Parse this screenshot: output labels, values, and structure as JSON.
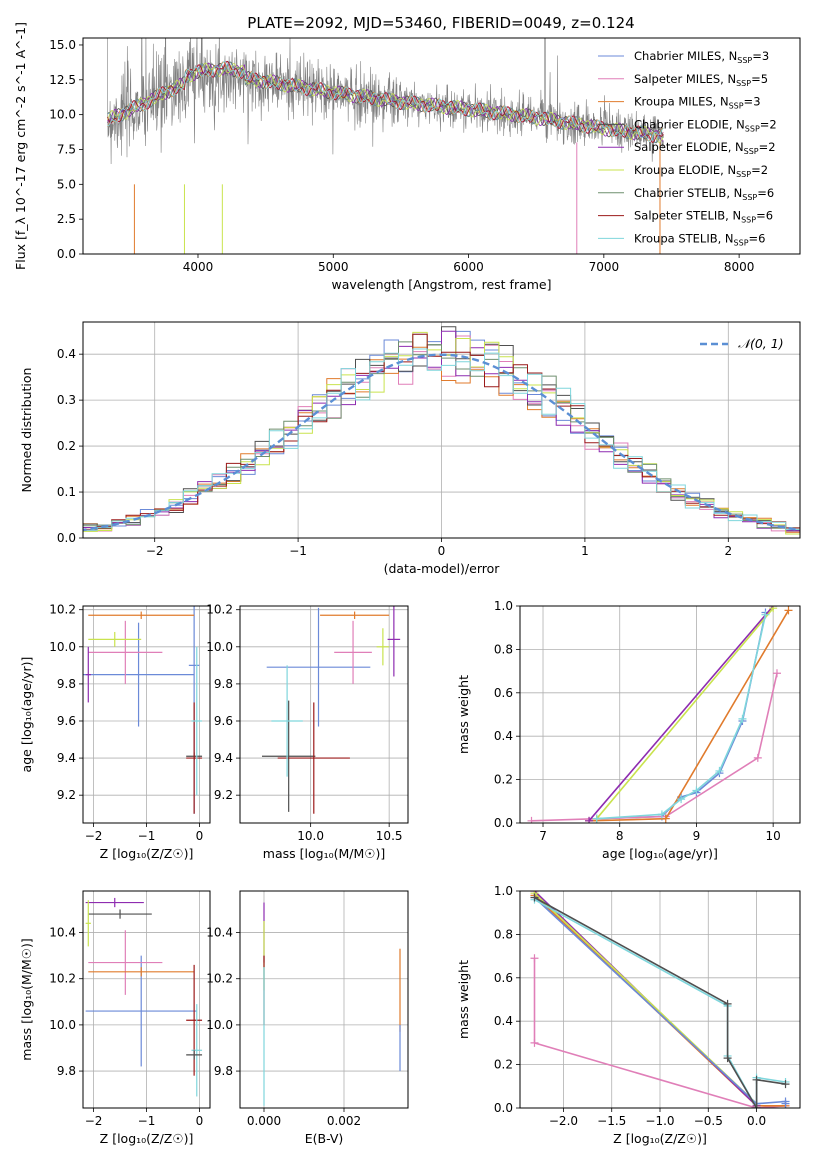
{
  "figure": {
    "title": "PLATE=2092, MJD=53460, FIBERID=0049, z=0.124"
  },
  "models": [
    {
      "name": "Chabrier MILES",
      "nssp": "3",
      "color": "#6b8ad8"
    },
    {
      "name": "Salpeter MILES",
      "nssp": "5",
      "color": "#e07fb8"
    },
    {
      "name": "Kroupa MILES",
      "nssp": "3",
      "color": "#e07b2d"
    },
    {
      "name": "Chabrier ELODIE",
      "nssp": "2",
      "color": "#4f4f4f"
    },
    {
      "name": "Salpeter ELODIE",
      "nssp": "2",
      "color": "#8e2cb0"
    },
    {
      "name": "Kroupa ELODIE",
      "nssp": "2",
      "color": "#c9e34e"
    },
    {
      "name": "Chabrier STELIB",
      "nssp": "6",
      "color": "#6f8f6f"
    },
    {
      "name": "Salpeter STELIB",
      "nssp": "6",
      "color": "#9b1a1a"
    },
    {
      "name": "Kroupa STELIB",
      "nssp": "6",
      "color": "#7fd6dc"
    }
  ],
  "observed_color": "#808080",
  "normal_color": "#5b8fd4",
  "chart_data": [
    {
      "id": "spectrum",
      "type": "line",
      "xlabel": "wavelength [Angstrom, rest frame]",
      "ylabel": "Flux [f_λ 10^-17 erg cm^-2 s^-1 A^-1]",
      "xlim": [
        3150,
        8450
      ],
      "ylim": [
        0,
        15.5
      ],
      "xticks": [
        "4000",
        "5000",
        "6000",
        "7000",
        "8000"
      ],
      "yticks": [
        "0.0",
        "2.5",
        "5.0",
        "7.5",
        "10.0",
        "12.5",
        "15.0"
      ],
      "grid": false,
      "legend": "top-right",
      "observed_range": [
        3330,
        7440
      ],
      "continuum": [
        [
          3330,
          9.6
        ],
        [
          3600,
          10.8
        ],
        [
          3800,
          11.8
        ],
        [
          4000,
          12.6
        ],
        [
          4200,
          12.8
        ],
        [
          4500,
          12.4
        ],
        [
          5000,
          11.6
        ],
        [
          5500,
          10.9
        ],
        [
          6000,
          10.4
        ],
        [
          6500,
          9.8
        ],
        [
          7000,
          9.0
        ],
        [
          7400,
          8.5
        ]
      ]
    },
    {
      "id": "residuals",
      "type": "step",
      "xlabel": "(data-model)/error",
      "ylabel": "Normed distribution",
      "xlim": [
        -2.5,
        2.5
      ],
      "ylim": [
        0,
        0.47
      ],
      "xticks": [
        "−2",
        "−1",
        "0",
        "1",
        "2"
      ],
      "yticks": [
        "0.0",
        "0.1",
        "0.2",
        "0.3",
        "0.4"
      ],
      "grid": true,
      "legend": "top-right",
      "normal_label": "𝒩(0, 1)",
      "bin_width": 0.1
    },
    {
      "id": "age-vs-Z",
      "type": "errorbar",
      "xlabel": "Z [log₁₀(Z/Z☉)]",
      "ylabel": "age  [log₁₀(age/yr)]",
      "xlim": [
        -2.2,
        0.2
      ],
      "ylim": [
        9.05,
        10.22
      ],
      "xticks": [
        "−2",
        "−1",
        "0"
      ],
      "yticks": [
        "9.2",
        "9.4",
        "9.6",
        "9.8",
        "10.0",
        "10.2"
      ],
      "grid": true,
      "points": [
        {
          "model": 0,
          "x": -1.15,
          "xerr": 1.05,
          "y": 9.85,
          "yerr": 0.28
        },
        {
          "model": 0,
          "x": -0.1,
          "xerr": 0.1,
          "y": 9.9,
          "yerr": 0.8
        },
        {
          "model": 1,
          "x": -1.4,
          "xerr": 0.7,
          "y": 9.97,
          "yerr": 0.17
        },
        {
          "model": 2,
          "x": -1.1,
          "xerr": 1.0,
          "y": 10.17,
          "yerr": 0.02
        },
        {
          "model": 4,
          "x": -2.1,
          "xerr": 0.05,
          "y": 9.85,
          "yerr": 0.15
        },
        {
          "model": 5,
          "x": -1.6,
          "xerr": 0.5,
          "y": 10.04,
          "yerr": 0.04
        },
        {
          "model": 3,
          "x": -0.1,
          "xerr": 0.15,
          "y": 9.41,
          "yerr": 0.02
        },
        {
          "model": 7,
          "x": -0.1,
          "xerr": 0.15,
          "y": 9.4,
          "yerr": 0.3
        },
        {
          "model": 8,
          "x": -0.05,
          "xerr": 0.1,
          "y": 9.6,
          "yerr": 0.4
        }
      ]
    },
    {
      "id": "age-vs-mass",
      "type": "errorbar",
      "xlabel": "mass [log₁₀(M/M☉)]",
      "ylabel": "",
      "xlim": [
        9.55,
        10.62
      ],
      "ylim": [
        9.05,
        10.22
      ],
      "xticks": [
        "9.5",
        "10.0",
        "10.5"
      ],
      "yticks": [
        "9.2",
        "9.4",
        "9.6",
        "9.8",
        "10.0",
        "10.2"
      ],
      "grid": true,
      "points": [
        {
          "model": 0,
          "x": 10.05,
          "xerr": 0.33,
          "y": 9.89,
          "yerr": 0.32
        },
        {
          "model": 1,
          "x": 10.27,
          "xerr": 0.12,
          "y": 9.97,
          "yerr": 0.17
        },
        {
          "model": 2,
          "x": 10.28,
          "xerr": 0.22,
          "y": 10.17,
          "yerr": 0.02
        },
        {
          "model": 4,
          "x": 10.53,
          "xerr": 0.04,
          "y": 10.04,
          "yerr": 0.2
        },
        {
          "model": 5,
          "x": 10.46,
          "xerr": 0.04,
          "y": 10.0,
          "yerr": 0.1
        },
        {
          "model": 3,
          "x": 9.86,
          "xerr": 0.17,
          "y": 9.41,
          "yerr": 0.3
        },
        {
          "model": 7,
          "x": 10.02,
          "xerr": 0.23,
          "y": 9.4,
          "yerr": 0.3
        },
        {
          "model": 8,
          "x": 9.85,
          "xerr": 0.1,
          "y": 9.6,
          "yerr": 0.3
        }
      ]
    },
    {
      "id": "weight-vs-age",
      "type": "line",
      "xlabel": "age  [log₁₀(age/yr)]",
      "ylabel": "mass weight",
      "xlim": [
        6.7,
        10.35
      ],
      "ylim": [
        0,
        1.0
      ],
      "xticks": [
        "7",
        "8",
        "9",
        "10"
      ],
      "yticks": [
        "0.0",
        "0.2",
        "0.4",
        "0.6",
        "0.8",
        "1.0"
      ],
      "grid": true,
      "series": [
        {
          "model": 0,
          "x": [
            7.7,
            8.55,
            8.8,
            9.0,
            9.3,
            9.6,
            9.9
          ],
          "y": [
            0.02,
            0.03,
            0.12,
            0.14,
            0.23,
            0.47,
            0.97
          ]
        },
        {
          "model": 1,
          "x": [
            6.85,
            8.6,
            9.8,
            10.05
          ],
          "y": [
            0.01,
            0.03,
            0.3,
            0.69
          ]
        },
        {
          "model": 2,
          "x": [
            7.6,
            8.6,
            10.2
          ],
          "y": [
            0.01,
            0.02,
            0.98
          ]
        },
        {
          "model": 4,
          "x": [
            7.6,
            10.0
          ],
          "y": [
            0.01,
            1.0
          ]
        },
        {
          "model": 5,
          "x": [
            7.7,
            10.0
          ],
          "y": [
            0.02,
            0.99
          ]
        },
        {
          "model": 8,
          "x": [
            7.7,
            8.55,
            8.8,
            9.0,
            9.3,
            9.6,
            9.9
          ],
          "y": [
            0.02,
            0.04,
            0.11,
            0.15,
            0.24,
            0.48,
            0.96
          ]
        }
      ]
    },
    {
      "id": "mass-vs-Z",
      "type": "errorbar",
      "xlabel": "Z [log₁₀(Z/Z☉)]",
      "ylabel": "mass [log₁₀(M/M☉)]",
      "xlim": [
        -2.2,
        0.2
      ],
      "ylim": [
        9.64,
        10.58
      ],
      "xticks": [
        "−2",
        "−1",
        "0"
      ],
      "yticks": [
        "9.8",
        "10.0",
        "10.2",
        "10.4"
      ],
      "grid": true,
      "points": [
        {
          "model": 0,
          "x": -1.1,
          "xerr": 1.05,
          "y": 10.06,
          "yerr": 0.24
        },
        {
          "model": 1,
          "x": -1.4,
          "xerr": 0.7,
          "y": 10.27,
          "yerr": 0.14
        },
        {
          "model": 2,
          "x": -1.1,
          "xerr": 1.0,
          "y": 10.23,
          "yerr": 0.02
        },
        {
          "model": 4,
          "x": -1.6,
          "xerr": 0.55,
          "y": 10.53,
          "yerr": 0.02
        },
        {
          "model": 3,
          "x": -1.5,
          "xerr": 0.6,
          "y": 10.48,
          "yerr": 0.02
        },
        {
          "model": 5,
          "x": -2.1,
          "xerr": 0.05,
          "y": 10.44,
          "yerr": 0.1
        },
        {
          "model": 7,
          "x": -0.1,
          "xerr": 0.15,
          "y": 10.02,
          "yerr": 0.24
        },
        {
          "model": 8,
          "x": -0.05,
          "xerr": 0.1,
          "y": 9.89,
          "yerr": 0.2
        },
        {
          "model": 3,
          "x": -0.1,
          "xerr": 0.15,
          "y": 9.87,
          "yerr": 0.02
        }
      ]
    },
    {
      "id": "mass-vs-ebv",
      "type": "errorbar",
      "xlabel": "E(B-V)",
      "ylabel": "",
      "xlim": [
        -0.0006,
        0.0036
      ],
      "ylim": [
        9.64,
        10.58
      ],
      "xticks": [
        "0.000",
        "0.002"
      ],
      "yticks": [
        "9.8",
        "10.0",
        "10.2",
        "10.4"
      ],
      "grid": true,
      "points": [
        {
          "model": 4,
          "x": 0.0,
          "xerr": 0,
          "y": 10.4,
          "yerr": 0.13
        },
        {
          "model": 5,
          "x": 0.0,
          "xerr": 0,
          "y": 10.3,
          "yerr": 0.15
        },
        {
          "model": 7,
          "x": 0.0,
          "xerr": 0,
          "y": 10.15,
          "yerr": 0.15
        },
        {
          "model": 8,
          "x": 0.0,
          "xerr": 0,
          "y": 9.95,
          "yerr": 0.3
        },
        {
          "model": 2,
          "x": 0.0034,
          "xerr": 0,
          "y": 10.15,
          "yerr": 0.18
        },
        {
          "model": 0,
          "x": 0.0034,
          "xerr": 0,
          "y": 9.9,
          "yerr": 0.1
        }
      ]
    },
    {
      "id": "weight-vs-Z",
      "type": "line",
      "xlabel": "Z [log₁₀(Z/Z☉)]",
      "ylabel": "mass weight",
      "xlim": [
        -2.45,
        0.45
      ],
      "ylim": [
        0,
        1.0
      ],
      "xticks": [
        "−2.0",
        "−1.5",
        "−1.0",
        "−0.5",
        "0.0",
        "0.5"
      ],
      "yticks": [
        "0.0",
        "0.2",
        "0.4",
        "0.6",
        "0.8",
        "1.0"
      ],
      "grid": true,
      "series": [
        {
          "model": 1,
          "x": [
            -2.3,
            -2.3,
            0.0,
            0.3
          ],
          "y": [
            0.69,
            0.3,
            0.0,
            0.01
          ]
        },
        {
          "model": 2,
          "x": [
            -2.3,
            0.0,
            0.3
          ],
          "y": [
            0.98,
            0.01,
            0.01
          ]
        },
        {
          "model": 4,
          "x": [
            -2.3,
            0.0
          ],
          "y": [
            1.0,
            0.01
          ]
        },
        {
          "model": 5,
          "x": [
            -2.3,
            0.0
          ],
          "y": [
            0.99,
            0.02
          ]
        },
        {
          "model": 0,
          "x": [
            -2.3,
            0.0,
            0.3,
            0.3
          ],
          "y": [
            0.97,
            0.02,
            0.03,
            0.02
          ]
        },
        {
          "model": 8,
          "x": [
            -2.3,
            -0.3,
            -0.3,
            0.0,
            0.0,
            0.3
          ],
          "y": [
            0.96,
            0.47,
            0.24,
            0.0,
            0.14,
            0.12
          ]
        },
        {
          "model": 3,
          "x": [
            -2.3,
            -0.3,
            -0.3,
            0.0,
            0.0,
            0.3
          ],
          "y": [
            0.97,
            0.48,
            0.23,
            0.0,
            0.13,
            0.11
          ]
        }
      ]
    }
  ]
}
